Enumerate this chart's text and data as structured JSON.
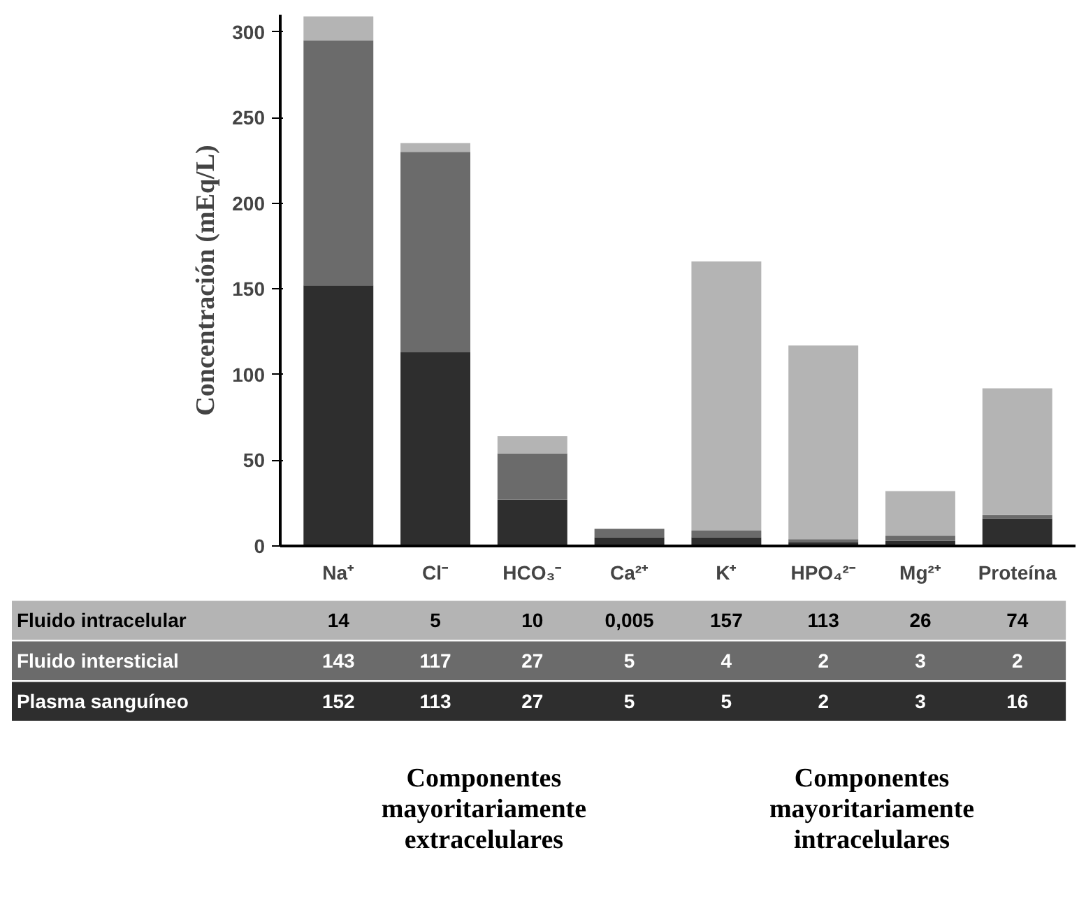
{
  "chart_data": {
    "type": "bar",
    "stacked": true,
    "ylabel": "Concentración (mEq/L)",
    "categories": [
      "Na⁺",
      "Cl⁻",
      "HCO₃⁻",
      "Ca²⁺",
      "K⁺",
      "HPO₄²⁻",
      "Mg²⁺",
      "Proteína"
    ],
    "series": [
      {
        "name": "Plasma sanguíneo",
        "color": "#2e2e2e",
        "values": [
          152,
          113,
          27,
          5,
          5,
          2,
          3,
          16
        ],
        "value_labels": [
          "152",
          "113",
          "27",
          "5",
          "5",
          "2",
          "3",
          "16"
        ]
      },
      {
        "name": "Fluido intersticial",
        "color": "#6b6b6b",
        "values": [
          143,
          117,
          27,
          5,
          4,
          2,
          3,
          2
        ],
        "value_labels": [
          "143",
          "117",
          "27",
          "5",
          "4",
          "2",
          "3",
          "2"
        ]
      },
      {
        "name": "Fluido intracelular",
        "color": "#b4b4b4",
        "values": [
          14,
          5,
          10,
          0.005,
          157,
          113,
          26,
          74
        ],
        "value_labels": [
          "14",
          "5",
          "10",
          "0,005",
          "157",
          "113",
          "26",
          "74"
        ]
      }
    ],
    "ylim": [
      0,
      310
    ],
    "yticks": [
      0,
      50,
      100,
      150,
      200,
      250,
      300
    ],
    "grid": false,
    "legend": false,
    "annotations": [
      "Componentes mayoritariamente extracelulares",
      "Componentes mayoritariamente intracelulares"
    ]
  }
}
